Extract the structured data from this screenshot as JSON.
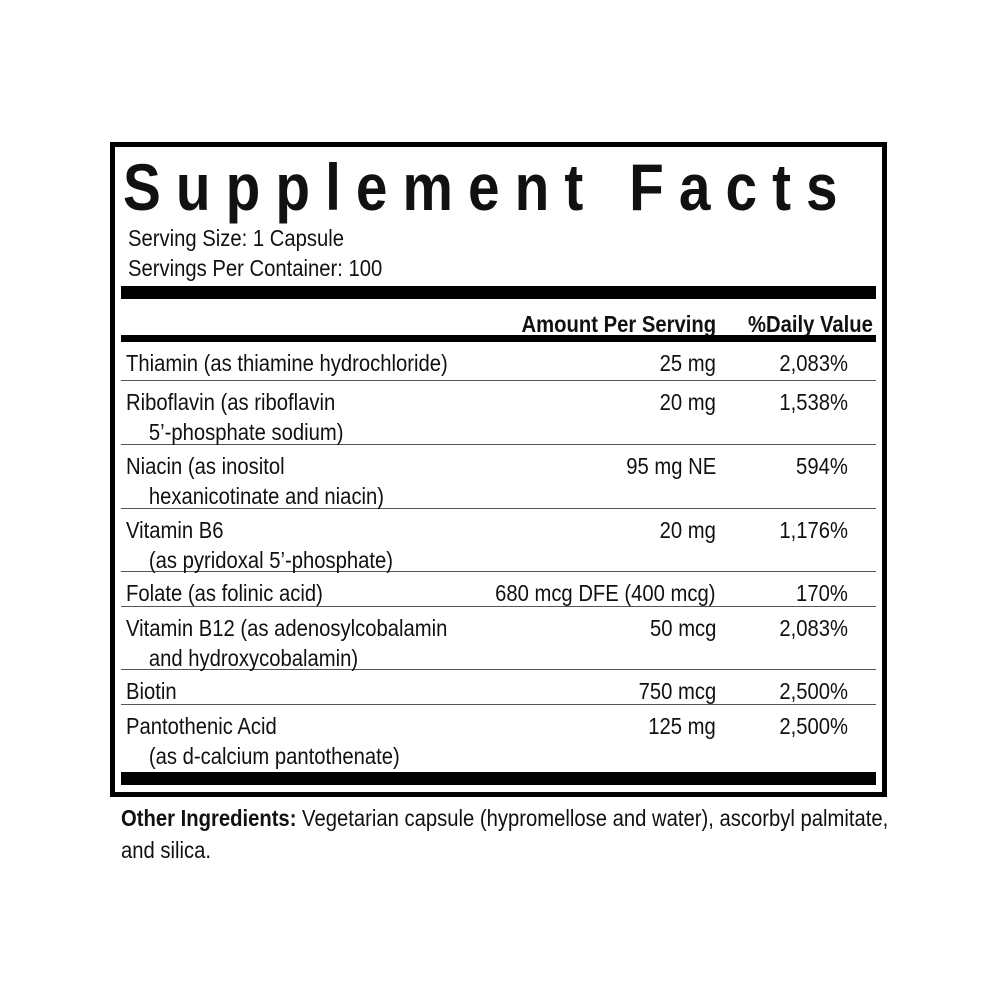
{
  "title": "Supplement Facts",
  "serving_size": "Serving Size: 1 Capsule",
  "servings_per_container": "Servings Per Container: 100",
  "headers": {
    "amount": "Amount Per Serving",
    "dv": "%Daily Value"
  },
  "rows": [
    {
      "name": "Thiamin (as thiamine hydrochloride)",
      "name2": "",
      "amount": "25 mg",
      "dv": "2,083%"
    },
    {
      "name": "Riboflavin (as riboflavin",
      "name2": "5’-phosphate sodium)",
      "amount": "20 mg",
      "dv": "1,538%"
    },
    {
      "name": "Niacin (as inositol",
      "name2": "hexanicotinate and niacin)",
      "amount": "95 mg NE",
      "dv": "594%"
    },
    {
      "name": "Vitamin B6",
      "name2": "(as pyridoxal 5’-phosphate)",
      "amount": "20 mg",
      "dv": "1,176%"
    },
    {
      "name": "Folate (as folinic acid)",
      "name2": "",
      "amount": "680 mcg DFE (400 mcg)",
      "dv": "170%"
    },
    {
      "name": "Vitamin B12 (as adenosylcobalamin",
      "name2": "and hydroxycobalamin)",
      "amount": "50 mcg",
      "dv": "2,083%"
    },
    {
      "name": "Biotin",
      "name2": "",
      "amount": "750 mcg",
      "dv": "2,500%"
    },
    {
      "name": "Pantothenic Acid",
      "name2": "(as d-calcium pantothenate)",
      "amount": "125 mg",
      "dv": "2,500%"
    }
  ],
  "other_ingredients": {
    "label": "Other Ingredients:",
    "text": " Vegetarian capsule (hypromellose and water), ascorbyl palmitate, and silica."
  }
}
